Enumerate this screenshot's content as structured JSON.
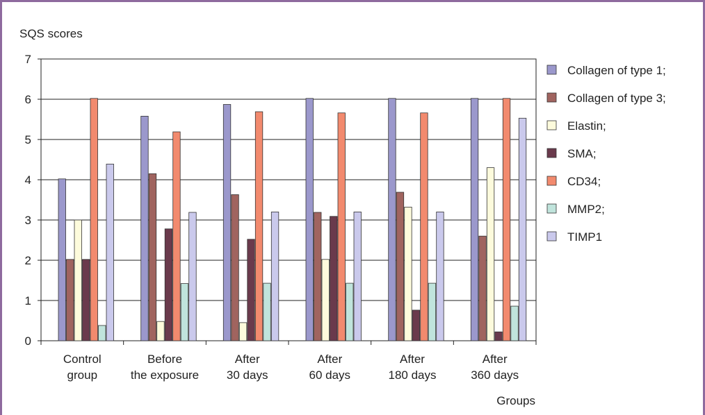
{
  "chart_data": {
    "type": "bar",
    "title": "",
    "ylabel": "SQS scores",
    "xlabel": "Groups",
    "ylim": [
      0,
      7
    ],
    "yticks": [
      0,
      1,
      2,
      3,
      4,
      5,
      6,
      7
    ],
    "grid": true,
    "legend_position": "right",
    "categories": [
      [
        "Control",
        "group"
      ],
      [
        "Before",
        "the exposure"
      ],
      [
        "After",
        "30 days"
      ],
      [
        "After",
        "60 days"
      ],
      [
        "After",
        "180 days"
      ],
      [
        "After",
        "360 days"
      ]
    ],
    "series": [
      {
        "name": "Collagen of type 1;",
        "color": "#9b98cc",
        "values": [
          4.02,
          5.58,
          5.87,
          6.02,
          6.02,
          6.02
        ]
      },
      {
        "name": "Collagen of type 3;",
        "color": "#a0645f",
        "values": [
          2.02,
          4.15,
          3.63,
          3.19,
          3.69,
          2.6
        ]
      },
      {
        "name": "Elastin;",
        "color": "#fdfbdc",
        "values": [
          3.0,
          0.48,
          0.45,
          2.02,
          3.32,
          4.3
        ]
      },
      {
        "name": "SMA;",
        "color": "#6a3a4c",
        "values": [
          2.02,
          2.78,
          2.52,
          3.09,
          0.76,
          0.22
        ]
      },
      {
        "name": "CD34;",
        "color": "#f28a6e",
        "values": [
          6.02,
          5.19,
          5.69,
          5.66,
          5.66,
          6.02
        ]
      },
      {
        "name": "MMP2;",
        "color": "#c0e4dc",
        "values": [
          0.38,
          1.42,
          1.43,
          1.43,
          1.43,
          0.86
        ]
      },
      {
        "name": "TIMP1",
        "color": "#cac9ec",
        "values": [
          4.39,
          3.19,
          3.2,
          3.2,
          3.2,
          5.53
        ]
      }
    ]
  }
}
